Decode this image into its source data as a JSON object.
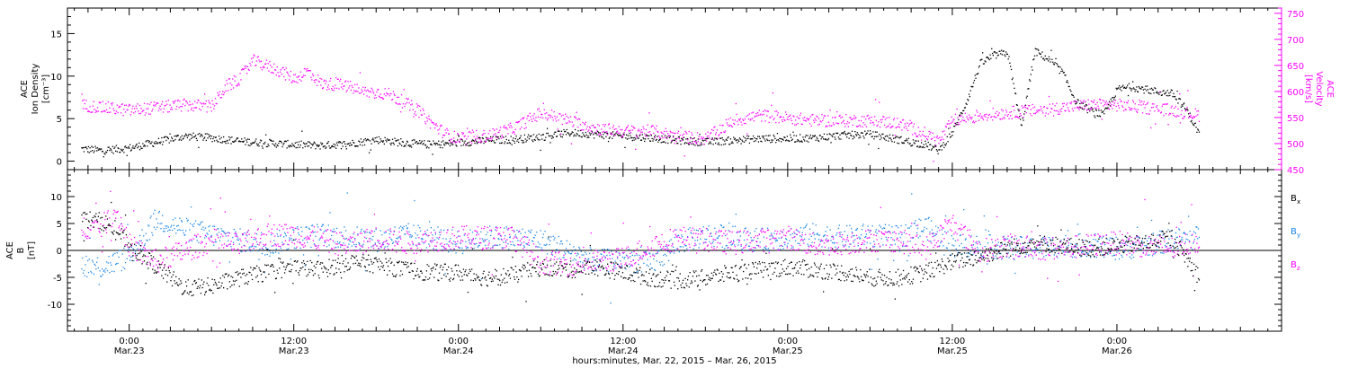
{
  "chart_data": [
    {
      "type": "scatter",
      "panel": "top",
      "ylabel_left": [
        "ACE",
        "Ion Density",
        "[cm⁻³]"
      ],
      "ylabel_right": [
        "ACE",
        "Velocity",
        "[km/s]"
      ],
      "ylim_left": [
        -1,
        18
      ],
      "ylim_right": [
        450,
        760
      ],
      "yticks_left": [
        "0",
        "5",
        "10",
        "15"
      ],
      "yticks_right": [
        "450",
        "500",
        "550",
        "600",
        "650",
        "700",
        "750"
      ],
      "series": [
        {
          "name": "density",
          "axis": "left",
          "color": "#000000",
          "x": [
            -3.5,
            -2,
            0,
            2,
            4,
            6,
            8,
            10,
            12,
            14,
            16,
            18,
            20,
            22,
            24,
            26,
            28,
            30,
            32,
            34,
            36,
            38,
            40,
            42,
            44,
            46,
            48,
            50,
            52,
            54,
            56,
            58,
            59,
            60,
            61,
            62,
            63,
            64,
            65,
            66,
            67,
            68,
            69,
            70,
            71,
            72,
            73,
            74,
            75,
            76,
            77,
            78
          ],
          "y": [
            1.5,
            1.3,
            1.6,
            2.3,
            3.0,
            2.8,
            2.4,
            2.2,
            2.0,
            1.9,
            2.1,
            2.6,
            2.2,
            2.0,
            2.2,
            2.5,
            2.6,
            2.9,
            3.4,
            3.2,
            3.0,
            2.8,
            2.5,
            2.3,
            2.5,
            2.7,
            2.7,
            2.8,
            3.1,
            3.2,
            2.6,
            2.0,
            1.3,
            3.5,
            7.0,
            11.5,
            12.5,
            12.8,
            4.0,
            13.0,
            12.0,
            10.5,
            7.0,
            6.0,
            5.5,
            8.5,
            8.8,
            8.5,
            8.2,
            8.0,
            6.2,
            3.2
          ]
        },
        {
          "name": "velocity",
          "axis": "right",
          "color": "#ff00ff",
          "x": [
            -3.5,
            -2,
            0,
            2,
            4,
            6,
            7,
            8,
            9,
            10,
            11,
            12,
            13,
            14,
            15,
            16,
            17,
            18,
            19,
            20,
            21,
            22,
            23,
            24,
            25,
            26,
            28,
            30,
            32,
            34,
            36,
            38,
            40,
            42,
            44,
            46,
            48,
            50,
            52,
            54,
            56,
            58,
            59,
            60,
            62,
            64,
            66,
            68,
            70,
            72,
            74,
            76,
            78
          ],
          "y": [
            575,
            570,
            565,
            570,
            575,
            572,
            610,
            625,
            660,
            650,
            640,
            625,
            640,
            615,
            615,
            610,
            600,
            600,
            595,
            580,
            565,
            540,
            520,
            510,
            515,
            515,
            530,
            560,
            545,
            530,
            525,
            525,
            515,
            510,
            545,
            555,
            550,
            545,
            545,
            545,
            540,
            520,
            505,
            545,
            555,
            560,
            565,
            570,
            575,
            575,
            570,
            565,
            555
          ]
        }
      ]
    },
    {
      "type": "scatter",
      "panel": "bottom",
      "ylabel_left": [
        "ACE",
        "B",
        "[nT]"
      ],
      "ylim": [
        -15,
        15
      ],
      "yticks": [
        "-10",
        "-5",
        "0",
        "5",
        "10"
      ],
      "series": [
        {
          "name": "Bx",
          "color": "#000000",
          "x": [
            -3.5,
            -2,
            -1,
            0,
            2,
            4,
            6,
            8,
            10,
            12,
            14,
            16,
            18,
            20,
            22,
            24,
            26,
            28,
            30,
            32,
            34,
            36,
            38,
            40,
            42,
            44,
            46,
            48,
            50,
            52,
            54,
            56,
            58,
            60,
            62,
            64,
            66,
            68,
            70,
            72,
            74,
            76,
            78
          ],
          "y": [
            6,
            5.5,
            4,
            1,
            -3,
            -7,
            -6.5,
            -5,
            -4,
            -3,
            -3.5,
            -2,
            -2.5,
            -3.5,
            -4,
            -4,
            -5,
            -4.5,
            -3,
            -3.5,
            -3,
            -4,
            -5,
            -5.5,
            -5,
            -4,
            -3.5,
            -3,
            -3.5,
            -4,
            -5,
            -5,
            -4,
            -2,
            -1,
            0.5,
            1.5,
            1,
            0.5,
            1,
            1.5,
            2.5,
            -5
          ]
        },
        {
          "name": "By",
          "color": "#1e88e5",
          "x": [
            -3.5,
            -2,
            0,
            2,
            4,
            6,
            8,
            10,
            12,
            14,
            16,
            18,
            20,
            22,
            24,
            26,
            28,
            30,
            32,
            34,
            36,
            38,
            40,
            42,
            44,
            46,
            48,
            50,
            52,
            54,
            56,
            58,
            60,
            62,
            64,
            66,
            68,
            70,
            72,
            74,
            76,
            78
          ],
          "y": [
            -2.5,
            -3,
            -1,
            6,
            4,
            3,
            2,
            1,
            2.5,
            3,
            2.5,
            2,
            3,
            2.5,
            1.5,
            2.5,
            2.5,
            2,
            0,
            -2,
            -1.5,
            -2.5,
            1.5,
            3,
            2.5,
            2,
            2.5,
            3,
            2.5,
            3,
            2.5,
            4.5,
            1,
            1,
            0.5,
            0.5,
            1,
            1,
            0.5,
            1,
            2,
            2.5
          ]
        },
        {
          "name": "Bz",
          "color": "#ff00ff",
          "x": [
            -3.5,
            -2,
            -1,
            0,
            2,
            4,
            6,
            8,
            10,
            12,
            14,
            16,
            18,
            20,
            22,
            24,
            26,
            28,
            30,
            32,
            34,
            36,
            38,
            40,
            42,
            44,
            46,
            48,
            50,
            52,
            54,
            56,
            58,
            60,
            62,
            64,
            66,
            68,
            70,
            72,
            74,
            76,
            78
          ],
          "y": [
            4.5,
            4.5,
            7.5,
            1,
            -2,
            0,
            2,
            1,
            3,
            3,
            2,
            1,
            2.5,
            1.5,
            2,
            2.5,
            2.5,
            2.5,
            -2,
            -2.5,
            -2,
            -1.5,
            1,
            2.5,
            2,
            1.5,
            2,
            2.5,
            1,
            1.5,
            2,
            2,
            0.5,
            5,
            0,
            1,
            0.5,
            0.5,
            1,
            1.5,
            1,
            0.5,
            2
          ]
        }
      ],
      "legend": [
        {
          "base": "B",
          "sub": "x",
          "color": "#000000"
        },
        {
          "base": "B",
          "sub": "y",
          "color": "#1e88e5"
        },
        {
          "base": "B",
          "sub": "z",
          "color": "#ff00ff"
        }
      ]
    }
  ],
  "x_axis": {
    "xlim_hours": [
      -4.5,
      84
    ],
    "tick_hours": [
      0,
      12,
      24,
      36,
      48,
      60,
      72
    ],
    "tick_labels": [
      {
        "time": "0:00",
        "date": "Mar.23"
      },
      {
        "time": "12:00",
        "date": "Mar.23"
      },
      {
        "time": "0:00",
        "date": "Mar.24"
      },
      {
        "time": "12:00",
        "date": "Mar.24"
      },
      {
        "time": "0:00",
        "date": "Mar.25"
      },
      {
        "time": "12:00",
        "date": "Mar.25"
      },
      {
        "time": "0:00",
        "date": "Mar.26"
      }
    ],
    "label": "hours:minutes, Mar. 22, 2015 – Mar. 26, 2015"
  }
}
